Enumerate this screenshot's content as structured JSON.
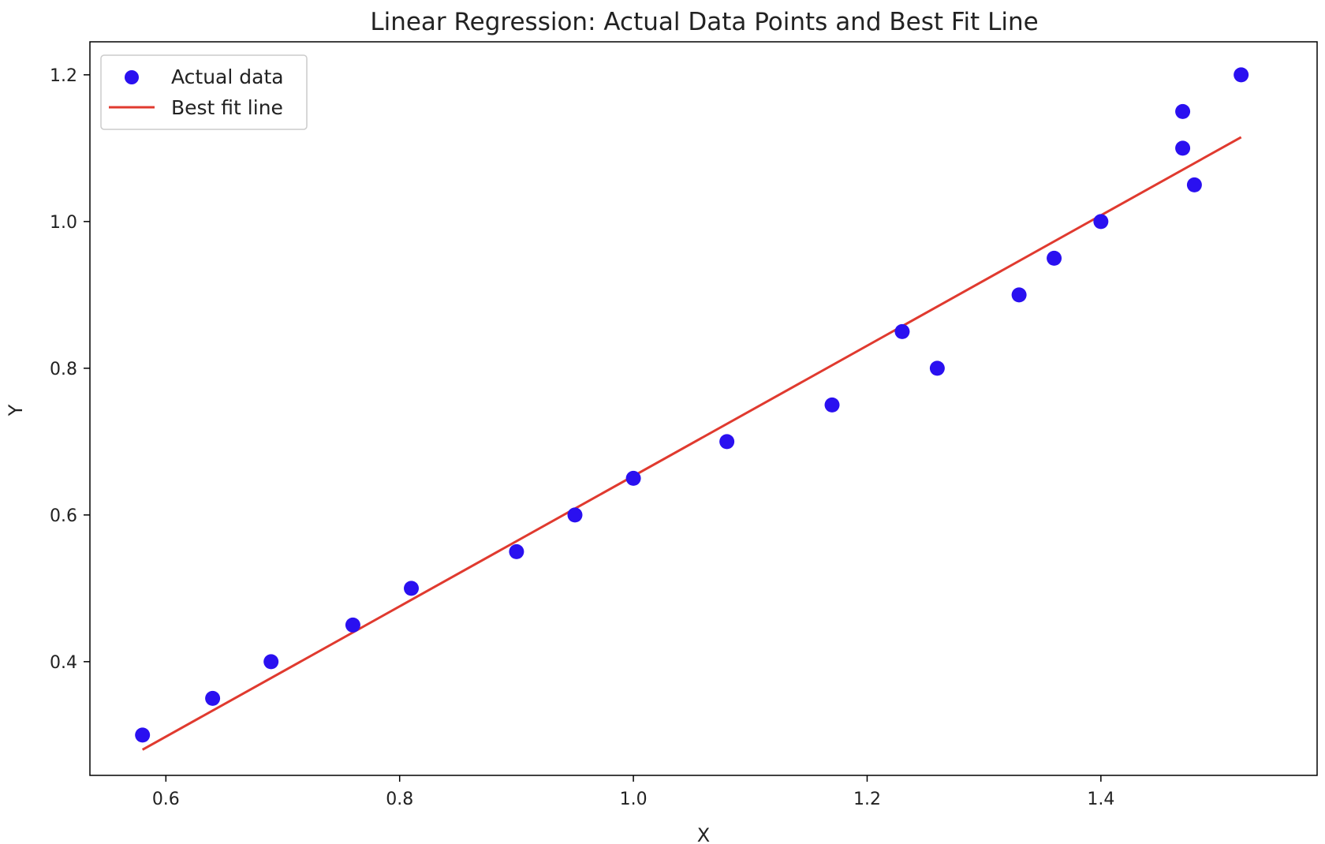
{
  "chart_data": {
    "type": "scatter",
    "title": "Linear Regression: Actual Data Points and Best Fit Line",
    "xlabel": "X",
    "ylabel": "Y",
    "xlim": [
      0.535,
      1.585
    ],
    "ylim": [
      0.245,
      1.245
    ],
    "xticks": [
      0.6,
      0.8,
      1.0,
      1.2,
      1.4
    ],
    "xtick_labels": [
      "0.6",
      "0.8",
      "1.0",
      "1.2",
      "1.4"
    ],
    "yticks": [
      0.4,
      0.6,
      0.8,
      1.0,
      1.2
    ],
    "ytick_labels": [
      "0.4",
      "0.6",
      "0.8",
      "1.0",
      "1.2"
    ],
    "grid": false,
    "legend_position": "top-left",
    "series": [
      {
        "name": "Actual data",
        "kind": "scatter",
        "color": "#2a10f0",
        "x": [
          0.58,
          0.64,
          0.69,
          0.76,
          0.81,
          0.9,
          0.95,
          1.0,
          1.08,
          1.17,
          1.23,
          1.26,
          1.33,
          1.36,
          1.4,
          1.47,
          1.47,
          1.48,
          1.52
        ],
        "y": [
          0.3,
          0.35,
          0.4,
          0.45,
          0.5,
          0.55,
          0.6,
          0.65,
          0.7,
          0.75,
          0.85,
          0.8,
          0.9,
          0.95,
          1.0,
          1.15,
          1.1,
          1.05,
          1.2
        ]
      },
      {
        "name": "Best fit line",
        "kind": "line",
        "color": "#e03a2f",
        "x": [
          0.58,
          1.52
        ],
        "y": [
          0.28,
          1.115
        ]
      }
    ]
  }
}
